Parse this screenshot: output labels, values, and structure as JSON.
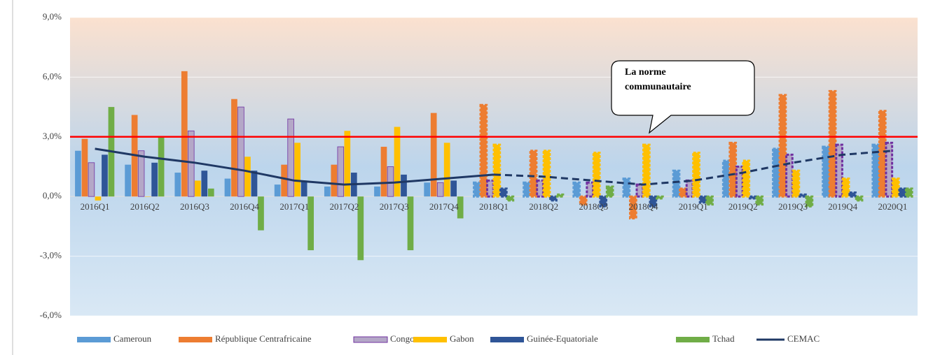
{
  "chart_data": {
    "type": "bar",
    "categories": [
      "2016Q1",
      "2016Q2",
      "2016Q3",
      "2016Q4",
      "2017Q1",
      "2017Q2",
      "2017Q3",
      "2017Q4",
      "2018Q1",
      "2018Q2",
      "2018Q3",
      "2018Q4",
      "2019Q1",
      "2019Q2",
      "2019Q3",
      "2019Q4",
      "2020Q1"
    ],
    "series": [
      {
        "name": "Cameroun",
        "type": "bar",
        "color": "#5b9bd5",
        "values": [
          2.3,
          1.6,
          1.2,
          0.9,
          0.6,
          0.5,
          0.5,
          0.7,
          0.7,
          0.7,
          0.7,
          0.9,
          1.3,
          1.8,
          2.4,
          2.5,
          2.6
        ]
      },
      {
        "name": "République Centrafricaine",
        "type": "bar",
        "color": "#ed7d31",
        "values": [
          2.9,
          4.1,
          6.3,
          4.9,
          1.6,
          1.6,
          2.5,
          4.2,
          4.6,
          2.3,
          -0.4,
          -1.1,
          0.4,
          2.7,
          5.1,
          5.3,
          4.3
        ]
      },
      {
        "name": "Congo",
        "type": "bar",
        "color": "#b4a7c7",
        "values": [
          1.7,
          2.3,
          3.3,
          4.5,
          3.9,
          2.5,
          1.5,
          0.7,
          0.8,
          0.8,
          0.7,
          0.6,
          0.8,
          1.5,
          2.1,
          2.6,
          2.7
        ]
      },
      {
        "name": "Gabon",
        "type": "bar",
        "color": "#ffc000",
        "values": [
          -0.2,
          0.0,
          0.8,
          2.0,
          2.7,
          3.3,
          3.5,
          2.7,
          2.6,
          2.3,
          2.2,
          2.6,
          2.2,
          1.8,
          1.3,
          0.9,
          0.9
        ]
      },
      {
        "name": "Guinée-Equatoriale",
        "type": "bar",
        "color": "#2f5597",
        "values": [
          2.1,
          1.7,
          1.3,
          1.3,
          0.8,
          1.2,
          1.1,
          0.8,
          0.4,
          -0.2,
          -0.5,
          -0.5,
          -0.3,
          -0.1,
          0.1,
          0.2,
          0.4
        ]
      },
      {
        "name": "Tchad",
        "type": "bar",
        "color": "#70ad47",
        "values": [
          4.5,
          3.0,
          0.4,
          -1.7,
          -2.7,
          -3.2,
          -2.7,
          -1.1,
          -0.2,
          0.1,
          0.5,
          -0.1,
          -0.4,
          -0.4,
          -0.5,
          -0.2,
          0.4
        ]
      },
      {
        "name": "CEMAC",
        "type": "line",
        "color": "#1f3864",
        "values": [
          2.4,
          2.0,
          1.7,
          1.3,
          0.8,
          0.6,
          0.7,
          0.9,
          1.1,
          1.0,
          0.8,
          0.6,
          0.8,
          1.2,
          1.7,
          2.1,
          2.3
        ]
      }
    ],
    "dashed_from": 8,
    "norm": 3,
    "norm_color": "#ff0000",
    "annotation": [
      "La norme",
      "communautaire"
    ],
    "ylim": [
      -6,
      9
    ],
    "yticks": [
      {
        "value": -6,
        "label": "-6,0%"
      },
      {
        "value": -3,
        "label": "-3,0%"
      },
      {
        "value": 0,
        "label": "0,0%"
      },
      {
        "value": 3,
        "label": "3,0%"
      },
      {
        "value": 6,
        "label": "6,0%"
      },
      {
        "value": 9,
        "label": "9,0%"
      }
    ],
    "grid": true,
    "legend": "bottom"
  }
}
